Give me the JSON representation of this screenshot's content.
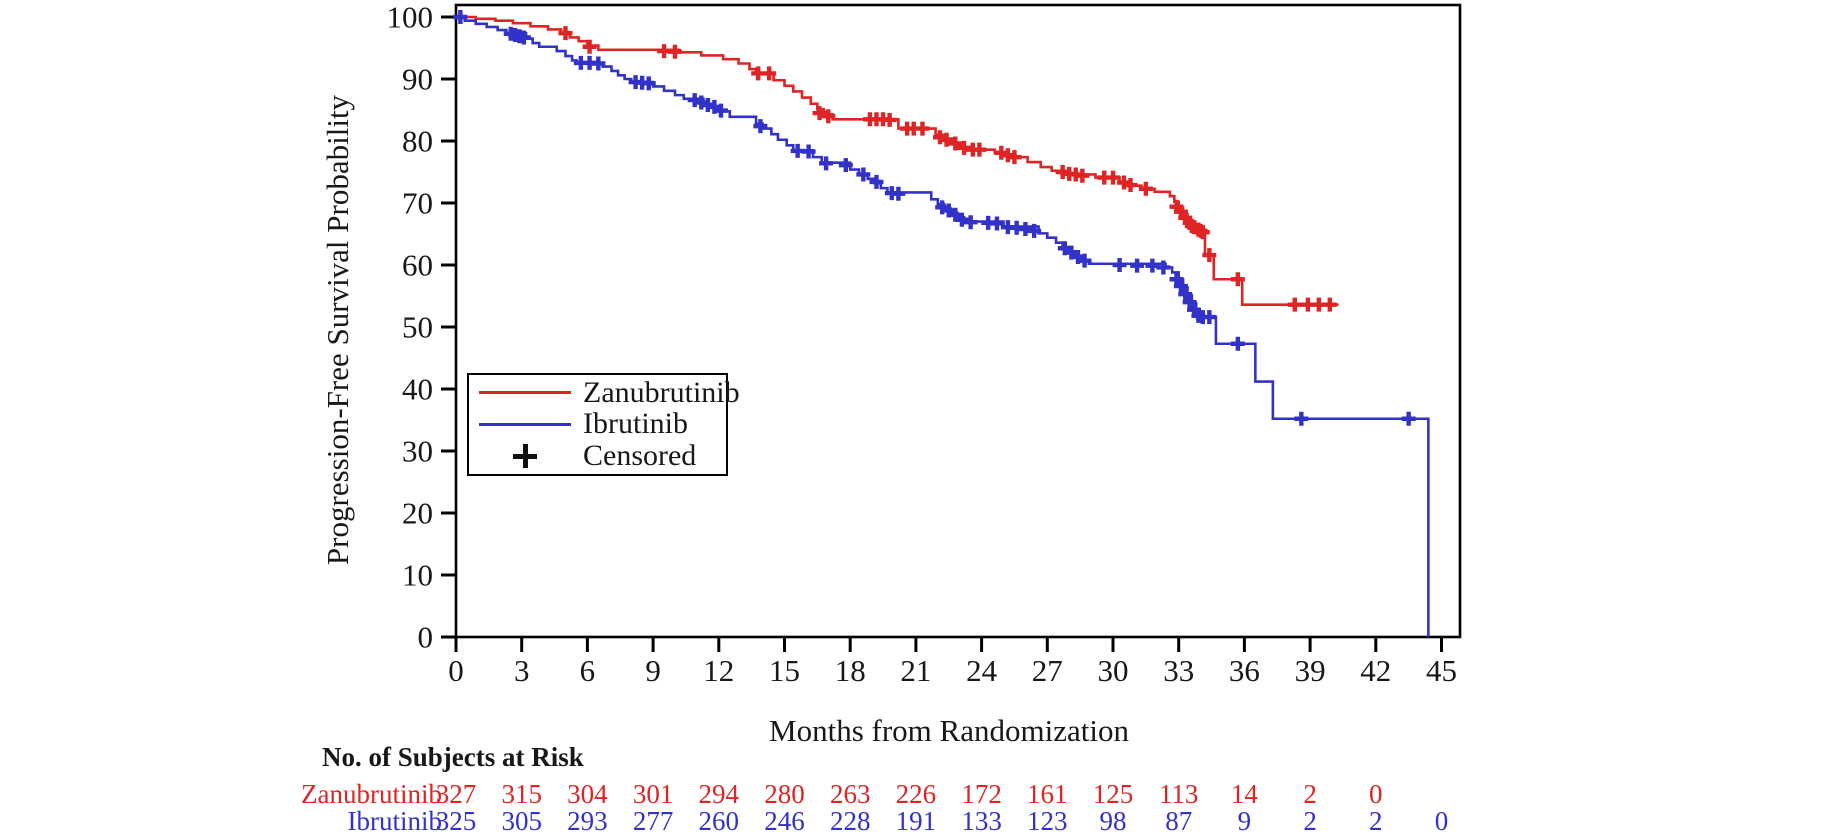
{
  "chart_data": {
    "type": "line",
    "subtype": "kaplan-meier-step",
    "title": "",
    "xlabel": "Months from Randomization",
    "ylabel": "Progression-Free Survival Probability",
    "xlim": [
      0,
      45
    ],
    "ylim": [
      0,
      100
    ],
    "x_ticks": [
      0,
      3,
      6,
      9,
      12,
      15,
      18,
      21,
      24,
      27,
      30,
      33,
      36,
      39,
      42,
      45
    ],
    "y_ticks": [
      0,
      10,
      20,
      30,
      40,
      50,
      60,
      70,
      80,
      90,
      100
    ],
    "grid": false,
    "frame": true,
    "colors": {
      "zanubrutinib": "#de2424",
      "ibrutinib": "#3232c8",
      "censor_legend": "#111111",
      "text": "#181818"
    },
    "legend": {
      "position": "inside-center-left",
      "entries": [
        {
          "label": "Zanubrutinib",
          "type": "line",
          "color": "#de2424"
        },
        {
          "label": "Ibrutinib",
          "type": "line",
          "color": "#3232c8"
        },
        {
          "label": "Censored",
          "type": "marker",
          "marker": "plus",
          "color": "#111111"
        }
      ]
    },
    "series": [
      {
        "name": "Zanubrutinib",
        "color": "#de2424",
        "steps": [
          [
            0,
            100
          ],
          [
            0.9,
            99.7
          ],
          [
            1.8,
            99.4
          ],
          [
            2.6,
            99
          ],
          [
            3.4,
            98.5
          ],
          [
            4.2,
            98
          ],
          [
            4.8,
            97.4
          ],
          [
            5.2,
            96.7
          ],
          [
            5.6,
            96.1
          ],
          [
            6,
            95.4
          ],
          [
            6.5,
            94.7
          ],
          [
            10.2,
            94.3
          ],
          [
            11.2,
            93.8
          ],
          [
            12.2,
            93.2
          ],
          [
            12.9,
            92.5
          ],
          [
            13.4,
            91.6
          ],
          [
            13.7,
            90.9
          ],
          [
            14.5,
            89.8
          ],
          [
            15,
            88.9
          ],
          [
            15.4,
            88
          ],
          [
            15.8,
            87
          ],
          [
            16.2,
            86
          ],
          [
            16.5,
            85.1
          ],
          [
            16.8,
            84.3
          ],
          [
            17.2,
            83.5
          ],
          [
            20.2,
            82
          ],
          [
            21.9,
            81
          ],
          [
            22.3,
            80.4
          ],
          [
            22.7,
            79.7
          ],
          [
            23.1,
            79
          ],
          [
            23.5,
            78.6
          ],
          [
            24.6,
            78.1
          ],
          [
            25.2,
            77.4
          ],
          [
            26.1,
            76.6
          ],
          [
            26.7,
            75.8
          ],
          [
            27.2,
            75.2
          ],
          [
            27.8,
            74.6
          ],
          [
            29.2,
            74.1
          ],
          [
            30.3,
            73.4
          ],
          [
            30.8,
            72.8
          ],
          [
            31.3,
            72.3
          ],
          [
            31.9,
            71.8
          ],
          [
            32.6,
            71.1
          ],
          [
            32.8,
            70.2
          ],
          [
            33,
            69.2
          ],
          [
            33.2,
            68.2
          ],
          [
            33.4,
            67.2
          ],
          [
            33.6,
            66.3
          ],
          [
            33.8,
            65.7
          ],
          [
            34,
            65.3
          ],
          [
            34.2,
            61.6
          ],
          [
            34.6,
            57.7
          ],
          [
            35.9,
            53.6
          ],
          [
            40.3,
            53.6
          ]
        ],
        "censor_marks": [
          [
            5,
            97.4
          ],
          [
            6.1,
            95.2
          ],
          [
            9.5,
            94.5
          ],
          [
            10,
            94.4
          ],
          [
            13.8,
            90.9
          ],
          [
            14.3,
            90.9
          ],
          [
            16.6,
            84.5
          ],
          [
            17,
            84
          ],
          [
            18.9,
            83.5
          ],
          [
            19.2,
            83.5
          ],
          [
            19.5,
            83.5
          ],
          [
            19.8,
            83.4
          ],
          [
            20.6,
            82
          ],
          [
            20.9,
            82
          ],
          [
            21.3,
            82
          ],
          [
            22.1,
            80.6
          ],
          [
            22.4,
            80.2
          ],
          [
            22.8,
            79.6
          ],
          [
            23.2,
            78.9
          ],
          [
            23.6,
            78.6
          ],
          [
            23.9,
            78.6
          ],
          [
            24.9,
            78.1
          ],
          [
            25.2,
            77.7
          ],
          [
            25.5,
            77.4
          ],
          [
            27.7,
            75
          ],
          [
            28,
            74.7
          ],
          [
            28.3,
            74.6
          ],
          [
            28.6,
            74.4
          ],
          [
            29.6,
            74.1
          ],
          [
            30,
            74.1
          ],
          [
            30.5,
            73.3
          ],
          [
            30.8,
            72.9
          ],
          [
            31.5,
            72.3
          ],
          [
            32.9,
            69.4
          ],
          [
            33.1,
            68.6
          ],
          [
            33.3,
            67.6
          ],
          [
            33.5,
            66.8
          ],
          [
            33.6,
            66.3
          ],
          [
            33.7,
            66.1
          ],
          [
            33.9,
            65.7
          ],
          [
            34,
            65.5
          ],
          [
            34.1,
            65.3
          ],
          [
            34.4,
            61.6
          ],
          [
            35.7,
            57.7
          ],
          [
            38.3,
            53.6
          ],
          [
            38.9,
            53.6
          ],
          [
            39.4,
            53.6
          ],
          [
            39.9,
            53.6
          ]
        ]
      },
      {
        "name": "Ibrutinib",
        "color": "#3232c8",
        "steps": [
          [
            0,
            100
          ],
          [
            0.4,
            99.4
          ],
          [
            0.9,
            98.9
          ],
          [
            1.4,
            98.4
          ],
          [
            1.9,
            97.9
          ],
          [
            2.3,
            97.4
          ],
          [
            3.2,
            96.5
          ],
          [
            3.5,
            95.8
          ],
          [
            3.8,
            95.2
          ],
          [
            4.6,
            94.5
          ],
          [
            5,
            93.7
          ],
          [
            5.3,
            93
          ],
          [
            5.5,
            92.6
          ],
          [
            6.7,
            92
          ],
          [
            7.1,
            91.3
          ],
          [
            7.4,
            90.6
          ],
          [
            7.7,
            90
          ],
          [
            8,
            89.5
          ],
          [
            9,
            88.8
          ],
          [
            9.5,
            88.1
          ],
          [
            10,
            87.4
          ],
          [
            10.4,
            86.8
          ],
          [
            11.3,
            86
          ],
          [
            11.7,
            85.4
          ],
          [
            12.1,
            84.8
          ],
          [
            12.5,
            83.9
          ],
          [
            13.7,
            82.8
          ],
          [
            14,
            82
          ],
          [
            14.4,
            81.1
          ],
          [
            14.7,
            80.2
          ],
          [
            15.1,
            79.3
          ],
          [
            15.4,
            78.5
          ],
          [
            16.3,
            77.4
          ],
          [
            16.7,
            76.5
          ],
          [
            18,
            75.4
          ],
          [
            18.4,
            74.7
          ],
          [
            18.8,
            73.9
          ],
          [
            19.1,
            73.2
          ],
          [
            19.4,
            72.4
          ],
          [
            19.7,
            71.7
          ],
          [
            21.7,
            70.6
          ],
          [
            22,
            69.8
          ],
          [
            22.3,
            69.1
          ],
          [
            22.6,
            68.4
          ],
          [
            22.9,
            67.7
          ],
          [
            23.2,
            67
          ],
          [
            25,
            66.2
          ],
          [
            26.6,
            65.1
          ],
          [
            27,
            64.4
          ],
          [
            27.4,
            63.6
          ],
          [
            27.7,
            62.9
          ],
          [
            28,
            62.2
          ],
          [
            28.3,
            61.5
          ],
          [
            28.6,
            60.8
          ],
          [
            28.9,
            60.2
          ],
          [
            32.4,
            59.6
          ],
          [
            32.7,
            58.8
          ],
          [
            33,
            57.7
          ],
          [
            33.2,
            56.4
          ],
          [
            33.4,
            55.1
          ],
          [
            33.6,
            53.8
          ],
          [
            33.8,
            52.5
          ],
          [
            34,
            51.6
          ],
          [
            34.7,
            47.3
          ],
          [
            36.5,
            41.2
          ],
          [
            37.3,
            35.2
          ],
          [
            44.4,
            0
          ]
        ],
        "censor_marks": [
          [
            0.2,
            100
          ],
          [
            2.5,
            97.3
          ],
          [
            2.7,
            97.1
          ],
          [
            2.9,
            96.9
          ],
          [
            3.1,
            96.7
          ],
          [
            5.7,
            92.6
          ],
          [
            6.1,
            92.6
          ],
          [
            6.5,
            92.5
          ],
          [
            8.2,
            89.5
          ],
          [
            8.5,
            89.4
          ],
          [
            8.8,
            89.3
          ],
          [
            10.9,
            86.6
          ],
          [
            11.2,
            86.2
          ],
          [
            11.5,
            85.8
          ],
          [
            11.8,
            85.5
          ],
          [
            12.1,
            84.9
          ],
          [
            13.9,
            82.4
          ],
          [
            15.6,
            78.4
          ],
          [
            16.1,
            78.3
          ],
          [
            16.9,
            76.4
          ],
          [
            17.8,
            76.1
          ],
          [
            18.6,
            74.6
          ],
          [
            19.2,
            73.4
          ],
          [
            19.9,
            71.6
          ],
          [
            20.2,
            71.5
          ],
          [
            22.2,
            69.3
          ],
          [
            22.5,
            68.8
          ],
          [
            22.8,
            68.1
          ],
          [
            23.1,
            67.3
          ],
          [
            23.5,
            66.9
          ],
          [
            24.3,
            66.8
          ],
          [
            24.7,
            66.7
          ],
          [
            25.2,
            66.1
          ],
          [
            25.6,
            66
          ],
          [
            26,
            65.8
          ],
          [
            26.4,
            65.5
          ],
          [
            27.8,
            62.7
          ],
          [
            28.1,
            62
          ],
          [
            28.4,
            61.3
          ],
          [
            28.7,
            60.7
          ],
          [
            30.3,
            60
          ],
          [
            31.1,
            59.9
          ],
          [
            31.8,
            59.9
          ],
          [
            32.3,
            59.6
          ],
          [
            32.9,
            57.7
          ],
          [
            33.1,
            56.6
          ],
          [
            33.3,
            55.3
          ],
          [
            33.5,
            54
          ],
          [
            33.7,
            52.8
          ],
          [
            33.9,
            51.8
          ],
          [
            34.1,
            51.6
          ],
          [
            34.4,
            51.6
          ],
          [
            35.7,
            47.3
          ],
          [
            38.6,
            35.2
          ],
          [
            43.5,
            35.2
          ]
        ]
      }
    ],
    "at_risk": {
      "header": "No. of Subjects at Risk",
      "months": [
        0,
        3,
        6,
        9,
        12,
        15,
        18,
        21,
        24,
        27,
        30,
        33,
        36,
        39,
        42,
        45
      ],
      "rows": [
        {
          "label": "Zanubrutinib",
          "color": "#de2424",
          "values": [
            327,
            315,
            304,
            301,
            294,
            280,
            263,
            226,
            172,
            161,
            125,
            113,
            14,
            2,
            0
          ]
        },
        {
          "label": "Ibrutinib",
          "color": "#3232c8",
          "values": [
            325,
            305,
            293,
            277,
            260,
            246,
            228,
            191,
            133,
            123,
            98,
            87,
            9,
            2,
            2,
            0
          ]
        }
      ]
    }
  }
}
